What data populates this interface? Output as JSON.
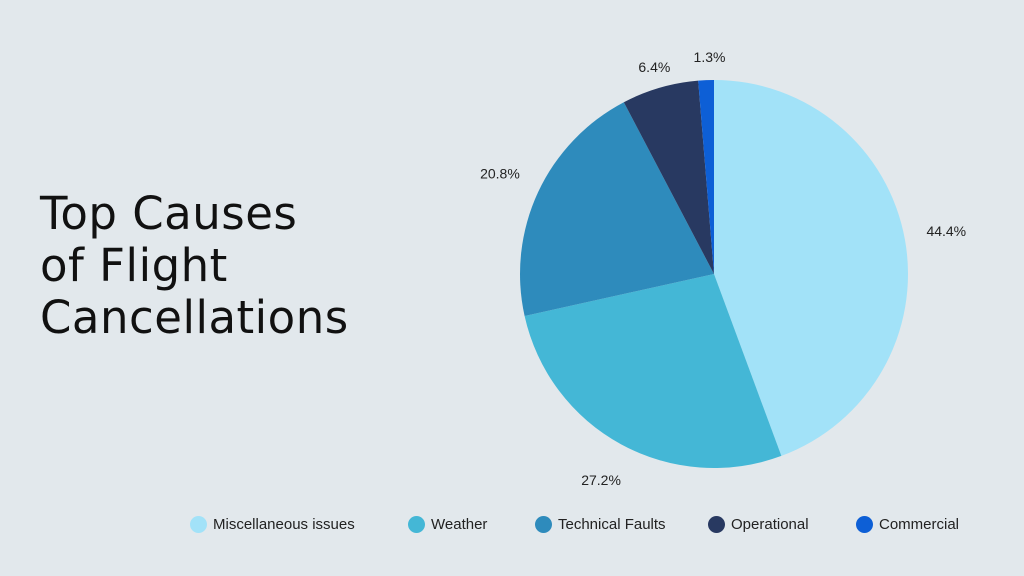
{
  "title_lines": [
    "Top Causes",
    "of Flight",
    "Cancellations"
  ],
  "chart_data": {
    "type": "pie",
    "title": "Top Causes of Flight Cancellations",
    "start_angle_deg": 0,
    "direction": "clockwise",
    "legend_position": "bottom",
    "slices": [
      {
        "label": "Miscellaneous issues",
        "value": 44.4,
        "value_label": "44.4%",
        "color": "#a2e2f8"
      },
      {
        "label": "Weather",
        "value": 27.2,
        "value_label": "27.2%",
        "color": "#44b7d6"
      },
      {
        "label": "Technical Faults",
        "value": 20.8,
        "value_label": "20.8%",
        "color": "#2e8bbc"
      },
      {
        "label": "Operational",
        "value": 6.4,
        "value_label": "6.4%",
        "color": "#283961"
      },
      {
        "label": "Commercial",
        "value": 1.3,
        "value_label": "1.3%",
        "color": "#0d5fd6"
      }
    ]
  }
}
